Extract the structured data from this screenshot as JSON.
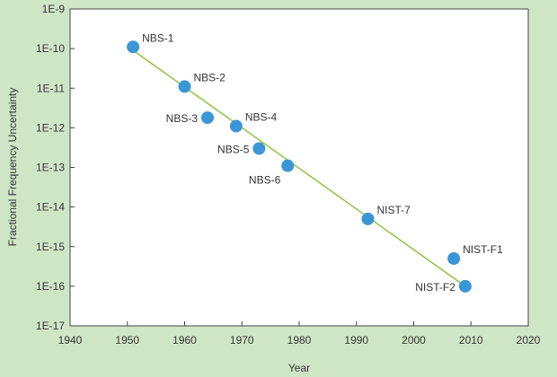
{
  "colors": {
    "background": "#cfe6c6",
    "plot_area": "#ffffff",
    "axis": "#444444",
    "marker": "#3a96d6",
    "trend_line": "#8cc63f",
    "text": "#333333"
  },
  "chart_data": {
    "type": "scatter",
    "title": "",
    "xlabel": "Year",
    "ylabel": "Fractional Frequency Uncertainty",
    "xlim": [
      1940,
      2020
    ],
    "x_ticks": [
      1940,
      1950,
      1960,
      1970,
      1980,
      1990,
      2000,
      2010,
      2020
    ],
    "y_scale": "log",
    "ylim": [
      1e-17,
      1e-09
    ],
    "y_ticks": [
      1e-17,
      1e-16,
      1e-15,
      1e-14,
      1e-13,
      1e-12,
      1e-11,
      1e-10,
      1e-09
    ],
    "y_tick_labels": [
      "1E-17",
      "1E-16",
      "1E-15",
      "1E-14",
      "1E-13",
      "1E-12",
      "1E-11",
      "1E-10",
      "1E-9"
    ],
    "grid": false,
    "points": [
      {
        "label": "NBS-1",
        "x": 1951,
        "y": 1.1e-10,
        "label_side": "right"
      },
      {
        "label": "NBS-2",
        "x": 1960,
        "y": 1.1e-11,
        "label_side": "right"
      },
      {
        "label": "NBS-3",
        "x": 1964,
        "y": 1.8e-12,
        "label_side": "left"
      },
      {
        "label": "NBS-4",
        "x": 1969,
        "y": 1.1e-12,
        "label_side": "right"
      },
      {
        "label": "NBS-5",
        "x": 1973,
        "y": 3e-13,
        "label_side": "left"
      },
      {
        "label": "NBS-6",
        "x": 1978,
        "y": 1.1e-13,
        "label_side": "below-left"
      },
      {
        "label": "NIST-7",
        "x": 1992,
        "y": 5e-15,
        "label_side": "right"
      },
      {
        "label": "NIST-F1",
        "x": 2007,
        "y": 5e-16,
        "label_side": "right"
      },
      {
        "label": "NIST-F2",
        "x": 2009,
        "y": 1e-16,
        "label_side": "left"
      }
    ],
    "trend_line": {
      "x": [
        1951,
        2009
      ],
      "y": [
        9e-11,
        1e-16
      ]
    }
  }
}
